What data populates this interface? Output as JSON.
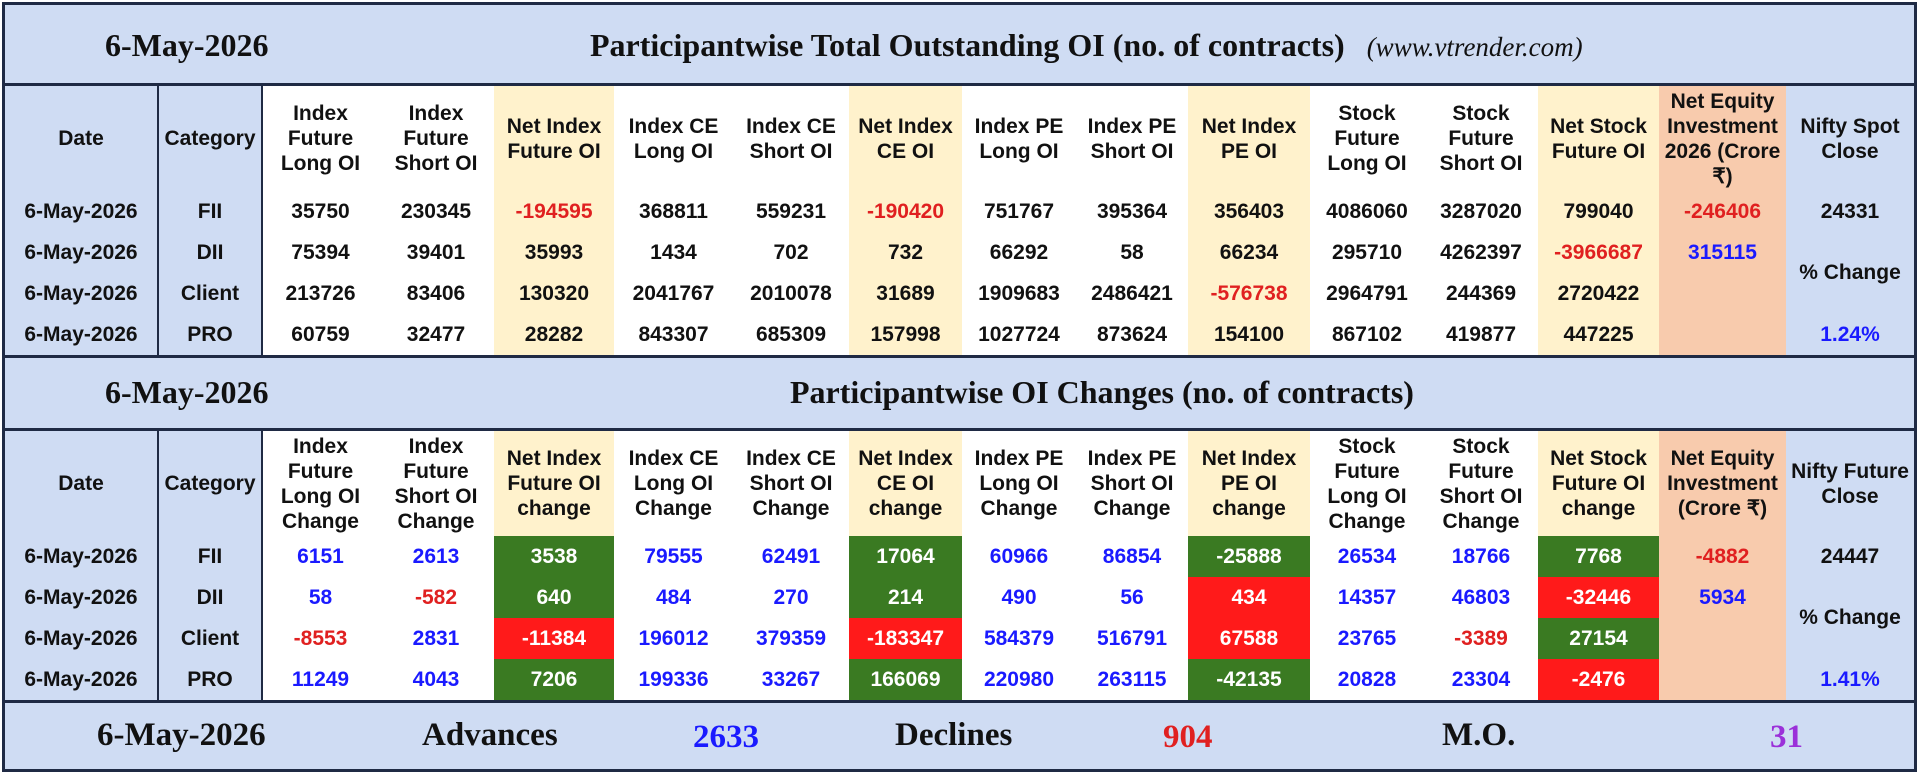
{
  "top": {
    "date": "6-May-2026",
    "title": "Participantwise Total Outstanding OI (no. of contracts)",
    "url": "(www.vtrender.com)",
    "headers": [
      "Date",
      "Category",
      "Index Future Long OI",
      "Index Future Short OI",
      "Net Index Future OI",
      "Index CE Long OI",
      "Index CE Short OI",
      "Net Index CE OI",
      "Index PE Long OI",
      "Index PE Short OI",
      "Net Index PE OI",
      "Stock Future Long OI",
      "Stock Future Short OI",
      "Net Stock Future OI",
      "Net Equity Investment 2026 (Crore ₹)",
      "Nifty Spot Close"
    ],
    "rows": [
      {
        "date": "6-May-2026",
        "category": "FII",
        "vals": [
          "35750",
          "230345",
          "-194595",
          "368811",
          "559231",
          "-190420",
          "751767",
          "395364",
          "356403",
          "4086060",
          "3287020",
          "799040"
        ],
        "equity": "-246406"
      },
      {
        "date": "6-May-2026",
        "category": "DII",
        "vals": [
          "75394",
          "39401",
          "35993",
          "1434",
          "702",
          "732",
          "66292",
          "58",
          "66234",
          "295710",
          "4262397",
          "-3966687"
        ],
        "equity": "315115"
      },
      {
        "date": "6-May-2026",
        "category": "Client",
        "vals": [
          "213726",
          "83406",
          "130320",
          "2041767",
          "2010078",
          "31689",
          "1909683",
          "2486421",
          "-576738",
          "2964791",
          "244369",
          "2720422"
        ],
        "equity": ""
      },
      {
        "date": "6-May-2026",
        "category": "PRO",
        "vals": [
          "60759",
          "32477",
          "28282",
          "843307",
          "685309",
          "157998",
          "1027724",
          "873624",
          "154100",
          "867102",
          "419877",
          "447225"
        ],
        "equity": ""
      }
    ],
    "right": {
      "close": "24331",
      "pct_label": "% Change",
      "pct": "1.24%"
    }
  },
  "bottom": {
    "date": "6-May-2026",
    "title": "Participantwise OI Changes (no. of contracts)",
    "headers": [
      "Date",
      "Category",
      "Index Future Long OI Change",
      "Index Future Short OI Change",
      "Net Index Future OI change",
      "Index CE Long OI Change",
      "Index CE Short OI Change",
      "Net Index CE OI change",
      "Index PE Long OI Change",
      "Index PE Short OI Change",
      "Net Index PE OI change",
      "Stock Future Long OI Change",
      "Stock Future Short OI Change",
      "Net Stock Future OI change",
      "Net Equity Investment (Crore ₹)",
      "Nifty Future Close"
    ],
    "rows": [
      {
        "date": "6-May-2026",
        "category": "FII",
        "vals": [
          "6151",
          "2613",
          "3538",
          "79555",
          "62491",
          "17064",
          "60966",
          "86854",
          "-25888",
          "26534",
          "18766",
          "7768"
        ],
        "equity": "-4882"
      },
      {
        "date": "6-May-2026",
        "category": "DII",
        "vals": [
          "58",
          "-582",
          "640",
          "484",
          "270",
          "214",
          "490",
          "56",
          "434",
          "14357",
          "46803",
          "-32446"
        ],
        "equity": "5934"
      },
      {
        "date": "6-May-2026",
        "category": "Client",
        "vals": [
          "-8553",
          "2831",
          "-11384",
          "196012",
          "379359",
          "-183347",
          "584379",
          "516791",
          "67588",
          "23765",
          "-3389",
          "27154"
        ],
        "equity": ""
      },
      {
        "date": "6-May-2026",
        "category": "PRO",
        "vals": [
          "11249",
          "4043",
          "7206",
          "199336",
          "33267",
          "166069",
          "220980",
          "263115",
          "-42135",
          "20828",
          "23304",
          "-2476"
        ],
        "equity": ""
      }
    ],
    "right": {
      "close": "24447",
      "pct_label": "% Change",
      "pct": "1.41%"
    }
  },
  "footer": {
    "date": "6-May-2026",
    "advances_label": "Advances",
    "advances": "2633",
    "declines_label": "Declines",
    "declines": "904",
    "mo_label": "M.O.",
    "mo": "31"
  },
  "colors": {
    "panel_blue": "#cfdcf3",
    "net_yellow": "#fff2cc",
    "equity_orange": "#f8cbad",
    "value_red": "#e02020",
    "value_blue": "#1a1aff",
    "cell_green": "#3a7a22",
    "cell_red": "#ff1a1a",
    "mo_purple": "#9b30d9"
  }
}
